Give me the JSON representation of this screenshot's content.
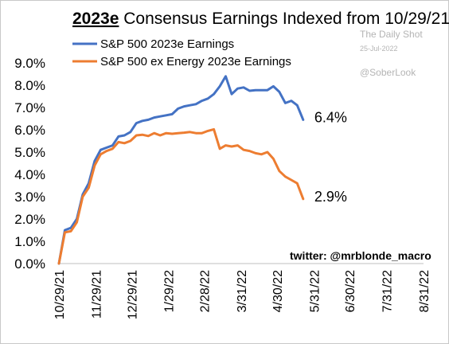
{
  "chart_data": {
    "type": "line",
    "title_bold": "2023e",
    "title_rest": " Consensus Earnings Indexed from 10/29/21",
    "y_ticks": [
      "9.0%",
      "8.0%",
      "7.0%",
      "6.0%",
      "5.0%",
      "4.0%",
      "3.0%",
      "2.0%",
      "1.0%",
      "0.0%"
    ],
    "ylim": [
      0,
      9
    ],
    "x_ticks": [
      "10/29/21",
      "11/29/21",
      "12/29/21",
      "1/29/22",
      "2/28/22",
      "3/31/22",
      "4/30/22",
      "5/31/22",
      "6/30/22",
      "7/31/22",
      "8/31/22"
    ],
    "xlim": [
      "2021-10-29",
      "2022-08-31"
    ],
    "legend_position": "top-left",
    "grid": false,
    "series": [
      {
        "name": "S&P 500 2023e Earnings",
        "color": "#4472C4",
        "end_label": "6.4%",
        "points": [
          [
            "2021-10-29",
            0.0
          ],
          [
            "2021-11-03",
            1.5
          ],
          [
            "2021-11-08",
            1.6
          ],
          [
            "2021-11-13",
            2.0
          ],
          [
            "2021-11-18",
            3.1
          ],
          [
            "2021-11-23",
            3.6
          ],
          [
            "2021-11-28",
            4.6
          ],
          [
            "2021-12-03",
            5.1
          ],
          [
            "2021-12-08",
            5.2
          ],
          [
            "2021-12-13",
            5.3
          ],
          [
            "2021-12-18",
            5.7
          ],
          [
            "2021-12-23",
            5.75
          ],
          [
            "2021-12-28",
            5.9
          ],
          [
            "2022-01-02",
            6.3
          ],
          [
            "2022-01-07",
            6.4
          ],
          [
            "2022-01-12",
            6.45
          ],
          [
            "2022-01-17",
            6.55
          ],
          [
            "2022-01-22",
            6.6
          ],
          [
            "2022-01-27",
            6.65
          ],
          [
            "2022-02-01",
            6.7
          ],
          [
            "2022-02-06",
            6.95
          ],
          [
            "2022-02-11",
            7.05
          ],
          [
            "2022-02-16",
            7.1
          ],
          [
            "2022-02-21",
            7.15
          ],
          [
            "2022-02-26",
            7.3
          ],
          [
            "2022-03-03",
            7.4
          ],
          [
            "2022-03-08",
            7.6
          ],
          [
            "2022-03-13",
            7.95
          ],
          [
            "2022-03-18",
            8.4
          ],
          [
            "2022-03-23",
            7.6
          ],
          [
            "2022-03-28",
            7.85
          ],
          [
            "2022-04-02",
            7.9
          ],
          [
            "2022-04-07",
            7.75
          ],
          [
            "2022-04-12",
            7.78
          ],
          [
            "2022-04-17",
            7.78
          ],
          [
            "2022-04-22",
            7.78
          ],
          [
            "2022-04-27",
            7.95
          ],
          [
            "2022-05-02",
            7.7
          ],
          [
            "2022-05-07",
            7.2
          ],
          [
            "2022-05-12",
            7.3
          ],
          [
            "2022-05-17",
            7.1
          ],
          [
            "2022-05-22",
            6.45
          ]
        ]
      },
      {
        "name": "S&P 500 ex Energy 2023e Earnings",
        "color": "#ED7D31",
        "end_label": "2.9%",
        "points": [
          [
            "2021-10-29",
            0.0
          ],
          [
            "2021-11-03",
            1.4
          ],
          [
            "2021-11-08",
            1.45
          ],
          [
            "2021-11-13",
            1.85
          ],
          [
            "2021-11-18",
            3.0
          ],
          [
            "2021-11-23",
            3.4
          ],
          [
            "2021-11-28",
            4.4
          ],
          [
            "2021-12-03",
            4.9
          ],
          [
            "2021-12-08",
            5.05
          ],
          [
            "2021-12-13",
            5.15
          ],
          [
            "2021-12-18",
            5.45
          ],
          [
            "2021-12-23",
            5.4
          ],
          [
            "2021-12-28",
            5.5
          ],
          [
            "2022-01-02",
            5.75
          ],
          [
            "2022-01-07",
            5.78
          ],
          [
            "2022-01-12",
            5.72
          ],
          [
            "2022-01-17",
            5.85
          ],
          [
            "2022-01-22",
            5.75
          ],
          [
            "2022-01-27",
            5.85
          ],
          [
            "2022-02-01",
            5.82
          ],
          [
            "2022-02-06",
            5.85
          ],
          [
            "2022-02-11",
            5.87
          ],
          [
            "2022-02-16",
            5.9
          ],
          [
            "2022-02-21",
            5.85
          ],
          [
            "2022-02-26",
            5.85
          ],
          [
            "2022-03-03",
            5.95
          ],
          [
            "2022-03-08",
            6.02
          ],
          [
            "2022-03-13",
            5.15
          ],
          [
            "2022-03-18",
            5.3
          ],
          [
            "2022-03-23",
            5.25
          ],
          [
            "2022-03-28",
            5.3
          ],
          [
            "2022-04-02",
            5.1
          ],
          [
            "2022-04-07",
            5.05
          ],
          [
            "2022-04-12",
            4.95
          ],
          [
            "2022-04-17",
            4.9
          ],
          [
            "2022-04-22",
            5.0
          ],
          [
            "2022-04-27",
            4.7
          ],
          [
            "2022-05-02",
            4.15
          ],
          [
            "2022-05-07",
            3.9
          ],
          [
            "2022-05-12",
            3.75
          ],
          [
            "2022-05-17",
            3.6
          ],
          [
            "2022-05-22",
            2.9
          ]
        ]
      }
    ],
    "annotations": {
      "credit": "twitter: @mrblonde_macro",
      "watermark_name": "The Daily Shot",
      "watermark_date": "25-Jul-2022",
      "watermark_handle": "@SoberLook"
    }
  }
}
